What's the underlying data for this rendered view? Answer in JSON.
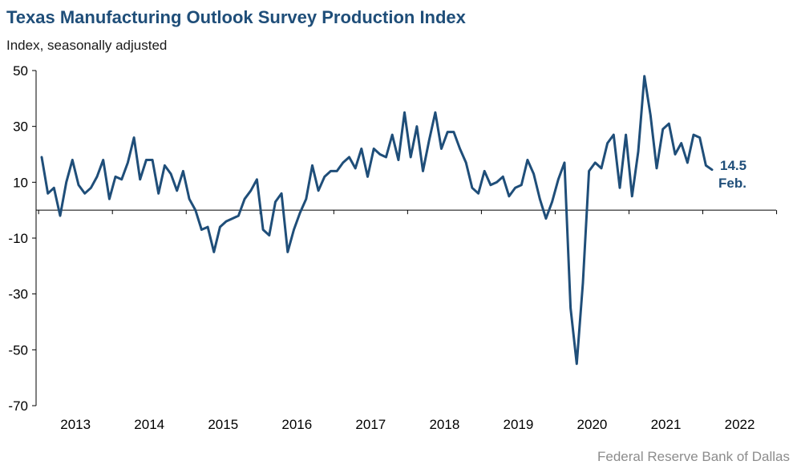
{
  "chart_data": {
    "type": "line",
    "title": "Texas Manufacturing Outlook Survey Production Index",
    "subtitle": "Index, seasonally adjusted",
    "source": "Federal Reserve Bank of Dallas",
    "ylim": [
      -70,
      50
    ],
    "yticks": [
      "50",
      "30",
      "10",
      "-10",
      "-30",
      "-50",
      "-70"
    ],
    "ytick_values": [
      50,
      30,
      10,
      -10,
      -30,
      -50,
      -70
    ],
    "year_labels": [
      "2013",
      "2014",
      "2015",
      "2016",
      "2017",
      "2018",
      "2019",
      "2020",
      "2021",
      "2022"
    ],
    "x_start": "2013-01",
    "series": [
      {
        "color": "#1f4e79",
        "values": [
          19,
          6,
          8,
          -2,
          10,
          18,
          9,
          6,
          8,
          12,
          18,
          4,
          12,
          11,
          17,
          26,
          11,
          18,
          18,
          6,
          16,
          13,
          7,
          14,
          4,
          0,
          -7,
          -6,
          -15,
          -6,
          -4,
          -3,
          -2,
          4,
          7,
          11,
          -7,
          -9,
          3,
          6,
          -15,
          -7,
          -1,
          4,
          16,
          7,
          12,
          14,
          14,
          17,
          19,
          15,
          22,
          12,
          22,
          20,
          19,
          27,
          18,
          35,
          19,
          30,
          14,
          25,
          35,
          22,
          28,
          28,
          22,
          17,
          8,
          6,
          14,
          9,
          10,
          12,
          5,
          8,
          9,
          18,
          13,
          4,
          -3,
          3,
          11,
          17,
          -35,
          -55,
          -26,
          14,
          17,
          15,
          24,
          27,
          8,
          27,
          5,
          21,
          48,
          34,
          15,
          29,
          31,
          20,
          24,
          17,
          27,
          26,
          16,
          14.5
        ]
      }
    ],
    "annotation": {
      "value": "14.5",
      "label": "Feb."
    }
  }
}
